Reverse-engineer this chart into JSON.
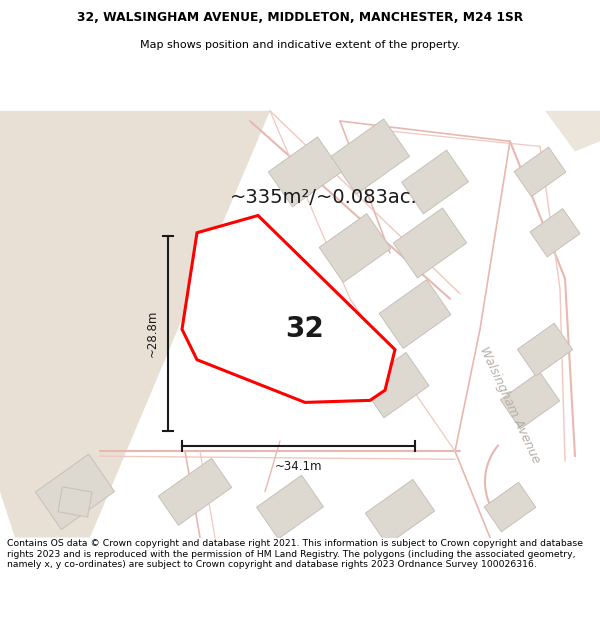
{
  "title_line1": "32, WALSINGHAM AVENUE, MIDDLETON, MANCHESTER, M24 1SR",
  "title_line2": "Map shows position and indicative extent of the property.",
  "area_text": "~335m²/~0.083ac.",
  "label_32": "32",
  "dim_width": "~34.1m",
  "dim_height": "~28.8m",
  "street_name": "Walsingham Avenue",
  "footer_text": "Contains OS data © Crown copyright and database right 2021. This information is subject to Crown copyright and database rights 2023 and is reproduced with the permission of HM Land Registry. The polygons (including the associated geometry, namely x, y co-ordinates) are subject to Crown copyright and database rights 2023 Ordnance Survey 100026316.",
  "map_bg": "#f5f0ec",
  "land_tan": "#e8e0d4",
  "land_tan2": "#ece5db",
  "road_outline": "#f0c8c0",
  "road_outline2": "#e8b8b0",
  "plot_fill": "#ffffff",
  "plot_edge": "#ff0000",
  "building_fill": "#ddd8d0",
  "building_edge": "#c8c0b8",
  "parcel_line": "#d0c8c0",
  "dim_color": "#1a1a1a",
  "street_label_color": "#b8b0a8",
  "header_bg": "#ffffff",
  "footer_bg": "#ffffff"
}
